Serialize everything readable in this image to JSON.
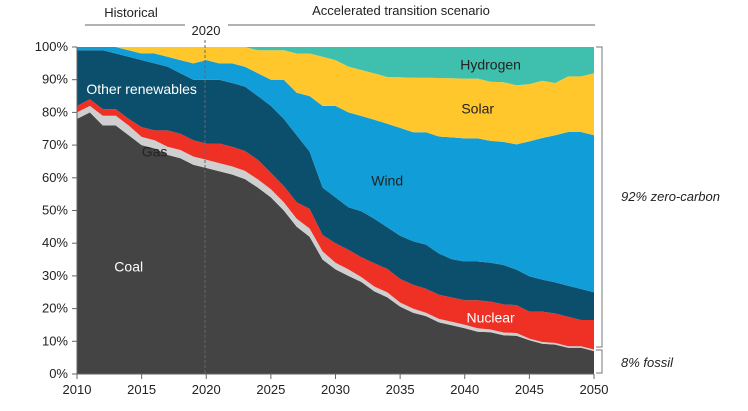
{
  "chart_data": {
    "type": "area",
    "stacked": true,
    "x": [
      2010,
      2011,
      2012,
      2013,
      2014,
      2015,
      2016,
      2017,
      2018,
      2019,
      2020,
      2021,
      2022,
      2023,
      2024,
      2025,
      2026,
      2027,
      2028,
      2029,
      2030,
      2031,
      2032,
      2033,
      2034,
      2035,
      2036,
      2037,
      2038,
      2039,
      2040,
      2041,
      2042,
      2043,
      2044,
      2045,
      2046,
      2047,
      2048,
      2049,
      2050
    ],
    "xticks": [
      2010,
      2015,
      2020,
      2025,
      2030,
      2035,
      2040,
      2045,
      2050
    ],
    "xlim": [
      2010,
      2050
    ],
    "ylim": [
      0,
      100
    ],
    "yticks": [
      0,
      10,
      20,
      30,
      40,
      50,
      60,
      70,
      80,
      90,
      100
    ],
    "ytick_labels": [
      "0%",
      "10%",
      "20%",
      "30%",
      "40%",
      "50%",
      "60%",
      "70%",
      "80%",
      "90%",
      "100%"
    ],
    "series": [
      {
        "name": "Coal",
        "color": "#444444",
        "values": [
          78,
          80,
          76,
          76,
          73,
          70,
          69,
          67,
          66,
          64,
          63,
          62,
          61,
          59,
          57,
          54,
          50,
          45,
          42,
          35,
          32,
          30,
          28,
          25,
          23,
          20,
          18,
          17,
          15,
          14,
          13,
          12,
          12,
          11,
          11,
          10,
          9,
          9,
          8,
          8,
          7
        ]
      },
      {
        "name": "Gas",
        "color": "#cfcfcf",
        "values": [
          2,
          2,
          3,
          3,
          3,
          2.5,
          2.5,
          2.5,
          2.5,
          2.5,
          2.5,
          2.5,
          2.5,
          2.5,
          2.5,
          2.5,
          2.5,
          2.5,
          2.5,
          2.5,
          2,
          2,
          1.5,
          1.5,
          1.5,
          1.2,
          1.2,
          1,
          1,
          1,
          1,
          1,
          0.8,
          0.8,
          0.8,
          0.5,
          0.5,
          0.5,
          0.5,
          0.5,
          0.5
        ]
      },
      {
        "name": "Nuclear",
        "color": "#ee3124",
        "values": [
          2,
          2,
          2,
          2,
          2,
          3,
          3,
          5,
          5,
          5,
          5,
          6,
          6,
          6,
          6,
          5,
          5,
          5,
          6,
          5,
          6,
          6,
          6,
          7,
          7,
          7,
          7,
          7,
          7,
          7,
          7,
          8,
          8,
          8,
          8,
          8,
          9,
          9,
          9,
          8,
          9
        ]
      },
      {
        "name": "Other renewables",
        "color": "#0b4f6c",
        "values": [
          17,
          15,
          18,
          17,
          19,
          20.5,
          20.5,
          19.5,
          18.5,
          18.5,
          19.5,
          19.5,
          19.5,
          19.5,
          19.5,
          20.5,
          20.5,
          20.5,
          17.5,
          14.5,
          14,
          13,
          14,
          13.5,
          12.5,
          12.8,
          12.8,
          13,
          12,
          11,
          11,
          11,
          11.2,
          11.2,
          10.2,
          10.5,
          9.5,
          9.5,
          9.5,
          9.5,
          8.5
        ]
      },
      {
        "name": "Wind",
        "color": "#119ed8",
        "values": [
          1,
          1,
          1,
          2,
          2,
          2,
          3,
          3,
          4,
          5,
          6,
          5,
          6,
          6,
          7,
          8,
          12,
          13,
          17,
          25,
          28,
          29,
          29,
          30,
          31,
          32,
          32,
          33,
          34,
          35,
          35,
          35,
          35,
          35,
          36,
          40,
          42,
          45,
          47,
          48,
          48
        ]
      },
      {
        "name": "Solar",
        "color": "#ffc72c",
        "values": [
          0,
          0,
          0,
          0,
          1,
          2,
          2,
          3,
          4,
          5,
          4,
          5,
          5,
          6,
          7,
          9,
          9,
          12,
          13,
          15,
          14,
          14,
          14,
          14,
          14,
          15,
          16,
          16,
          17,
          17,
          17,
          17,
          17,
          17,
          17,
          17,
          17,
          16,
          17,
          17,
          19
        ]
      },
      {
        "name": "Hydrogen",
        "color": "#3fbfad",
        "values": [
          0,
          0,
          0,
          0,
          0,
          0,
          0,
          0,
          0,
          0,
          0,
          0,
          0,
          0,
          1,
          1,
          1,
          2,
          2,
          3,
          4,
          6,
          7,
          8,
          9,
          9,
          9,
          9,
          9,
          9,
          9,
          9,
          10,
          10,
          11,
          11,
          10,
          11,
          9,
          9,
          8
        ]
      }
    ],
    "header_labels": {
      "historical": "Historical",
      "scenario": "Accelerated transition scenario",
      "divider_year": "2020"
    },
    "annotations": {
      "zero_carbon": "92% zero-carbon",
      "fossil": "8% fossil"
    }
  }
}
